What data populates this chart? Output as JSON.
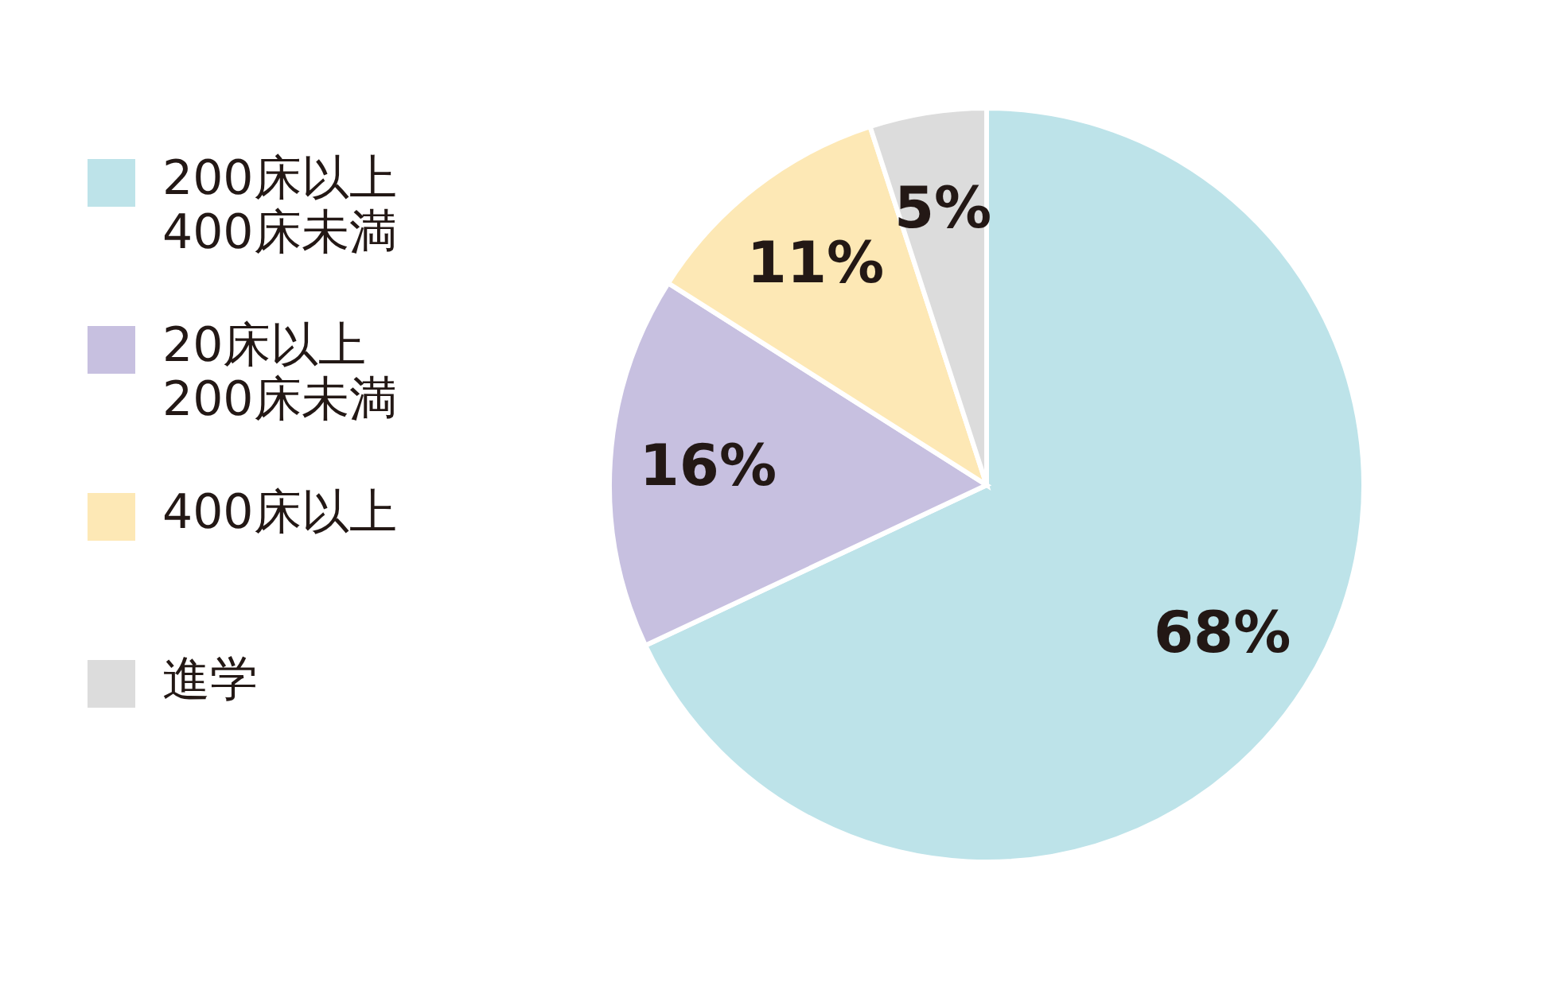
{
  "chart_data": {
    "type": "pie",
    "categories": [
      "200床以上\n400床未満",
      "20床以上\n200床未満",
      "400床以上",
      "進学"
    ],
    "values": [
      68,
      16,
      11,
      5
    ],
    "value_labels": [
      "68%",
      "16%",
      "11%",
      "5%"
    ],
    "colors": [
      "#bde3e9",
      "#c7c0e0",
      "#fde8b5",
      "#dcdcdc"
    ],
    "legend": "left"
  }
}
